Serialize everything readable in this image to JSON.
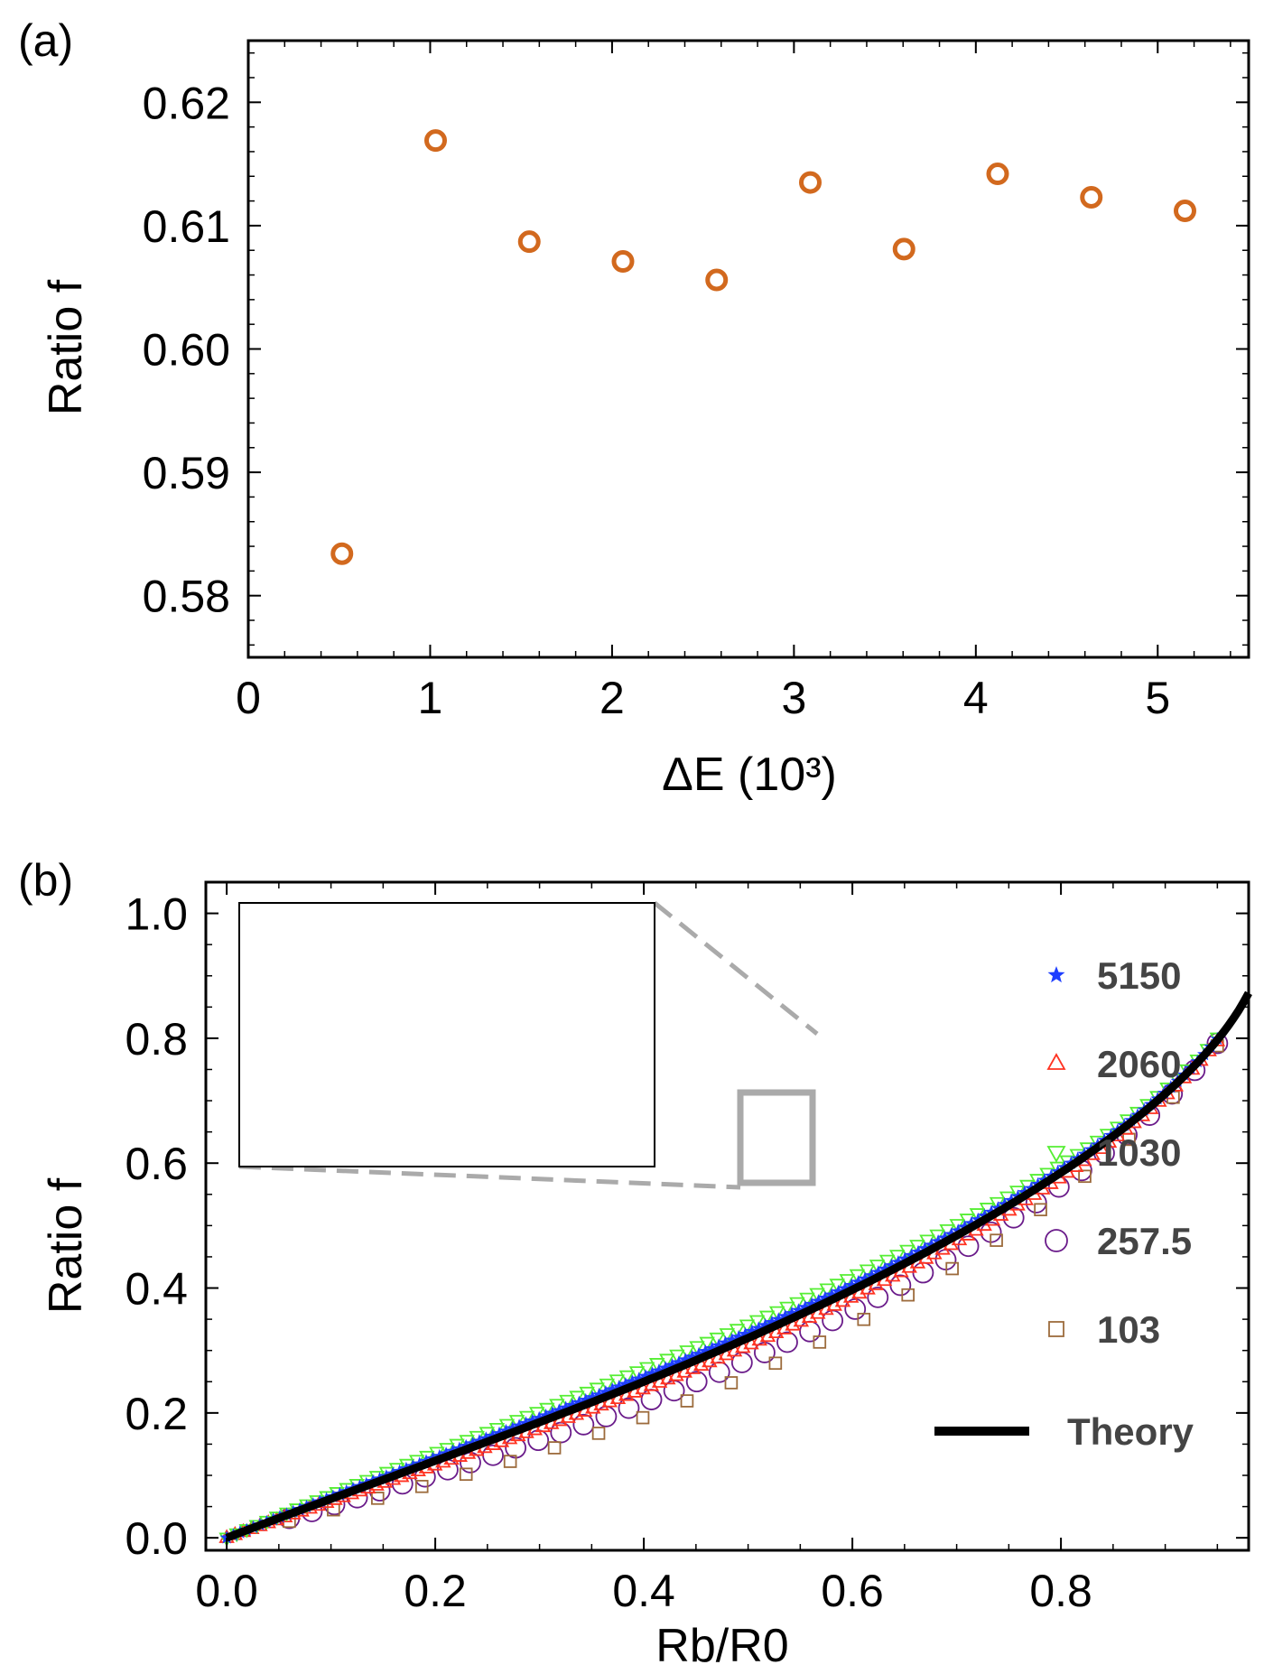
{
  "chart_data": [
    {
      "panel": "(a)",
      "type": "scatter",
      "xlabel": "ΔE (10³)",
      "ylabel": "Ratio f",
      "xlim": [
        0,
        5.5
      ],
      "ylim": [
        0.575,
        0.625
      ],
      "xticks": [
        "0",
        "1",
        "2",
        "3",
        "4",
        "5"
      ],
      "yticks": [
        "0.58",
        "0.59",
        "0.60",
        "0.61",
        "0.62"
      ],
      "color": "#d2691e",
      "marker": "open-circle",
      "x": [
        0.515,
        1.03,
        1.545,
        2.06,
        2.575,
        3.09,
        3.605,
        4.12,
        4.635,
        5.15
      ],
      "y": [
        0.5834,
        0.6169,
        0.6087,
        0.6071,
        0.6056,
        0.6135,
        0.6081,
        0.6142,
        0.6123,
        0.6112
      ]
    },
    {
      "panel": "(b)",
      "type": "scatter",
      "xlabel": "Rb/R0",
      "ylabel": "Ratio f",
      "xlim": [
        -0.02,
        0.98
      ],
      "ylim": [
        -0.02,
        1.05
      ],
      "xticks": [
        "0.0",
        "0.2",
        "0.4",
        "0.6",
        "0.8"
      ],
      "yticks": [
        "0.0",
        "0.2",
        "0.4",
        "0.6",
        "0.8",
        "1.0"
      ],
      "series": [
        {
          "name": "5150",
          "marker": "star",
          "color": "#1f3fff",
          "n": 150,
          "bias": 0.008,
          "shift": 0.0
        },
        {
          "name": "2060",
          "marker": "triangle-up",
          "color": "#ff3322",
          "n": 120,
          "bias": -0.012,
          "shift": 0.0
        },
        {
          "name": "1030",
          "marker": "triangle-down",
          "color": "#55ee33",
          "n": 100,
          "bias": 0.022,
          "shift": 0.0
        },
        {
          "name": "257.5",
          "marker": "circle",
          "color": "#6a1b8a",
          "n": 42,
          "bias": -0.035,
          "shift": 0.06
        },
        {
          "name": "103",
          "marker": "square",
          "color": "#9c6b3c",
          "n": 22,
          "bias": -0.06,
          "shift": 0.06
        }
      ],
      "theory": {
        "name": "Theory",
        "color": "#000000"
      },
      "inset": {
        "xlim": [
          0.5,
          0.565
        ],
        "ylim": [
          0.555,
          0.695
        ]
      }
    }
  ]
}
